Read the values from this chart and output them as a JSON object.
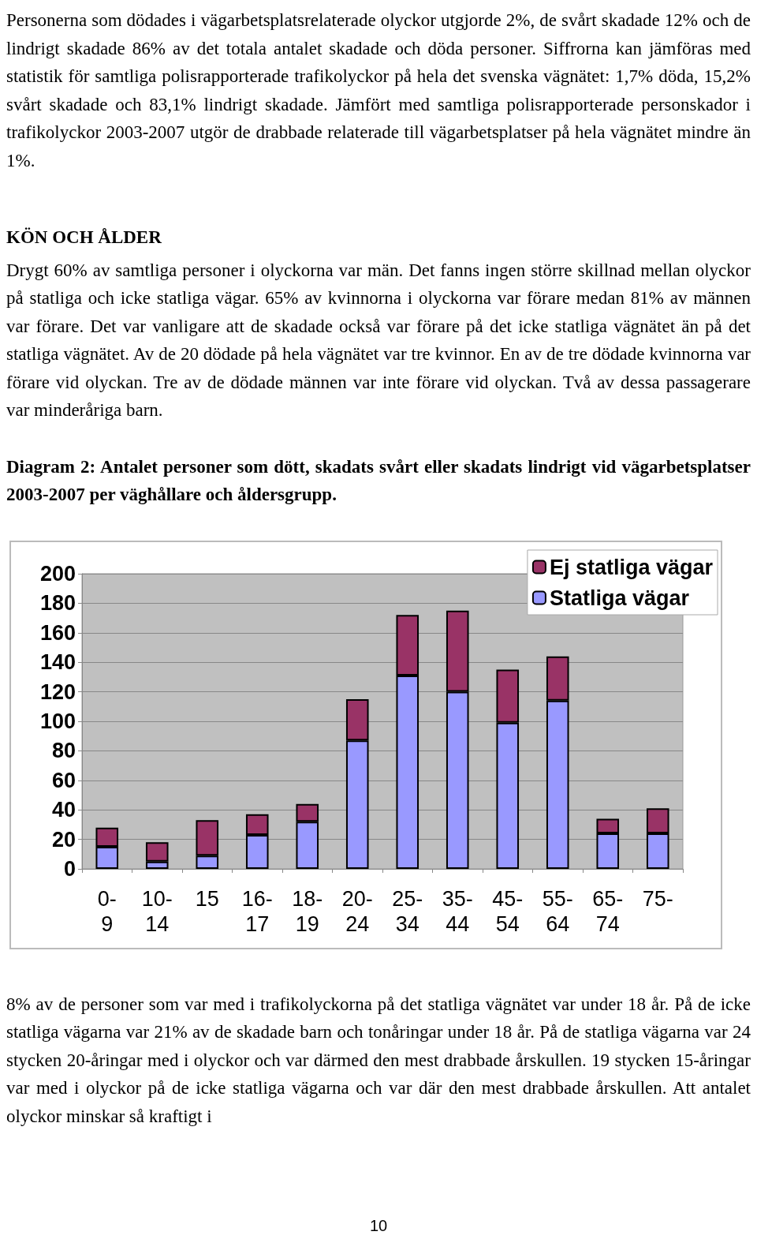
{
  "chart_data": {
    "type": "bar",
    "title": "Diagram 2: Antalet personer som dött, skadats svårt eller skadats lindrigt vid vägarbetsplatser 2003-2007 per väghållare och åldersgrupp.",
    "annotations": [
      "Personerna som dödades i vägarbetsplatsrelaterade olyckor utgjorde 2%, de svårt skadade 12% och de lindrigt skadade 86% av det totala antalet skadade och döda personer. Siffrorna kan jämföras med statistik för samtliga polisrapporterade trafikolyckor på hela det svenska vägnätet: 1,7% döda, 15,2% svårt skadade och 83,1% lindrigt skadade. Jämfört med samtliga polisrapporterade personskador i trafikolyckor 2003-2007 utgör de drabbade relaterade till vägarbetsplatser på hela vägnätet mindre än 1%.",
      "KÖN OCH ÅLDER",
      "Drygt 60% av samtliga personer i olyckorna var män. Det fanns ingen större skillnad mellan olyckor på statliga och icke statliga vägar. 65% av kvinnorna i olyckorna var förare medan 81% av männen var förare. Det var vanligare att de skadade också var förare på det icke statliga vägnätet än på det statliga vägnätet. Av de 20 dödade på hela vägnätet var tre kvinnor. En av de tre dödade kvinnorna var förare vid olyckan. Tre av de dödade männen var inte förare vid olyckan. Två av dessa passagerare var minderåriga barn.",
      "8% av de personer som var med i trafikolyckorna på det statliga vägnätet var under 18 år. På de icke statliga vägarna var 21% av de skadade barn och tonåringar under 18 år. På de statliga vägarna var 24 stycken 20-åringar med i olyckor och var därmed den mest drabbade årskullen. 19 stycken 15-åringar var med i olyckor på de icke statliga vägarna och var där den mest drabbade årskullen. Att antalet olyckor minskar så kraftigt i",
      "10"
    ],
    "categories": [
      "0-9",
      "10-14",
      "15",
      "16-17",
      "18-19",
      "20-24",
      "25-34",
      "35-44",
      "45-54",
      "55-64",
      "65-74",
      "75-"
    ],
    "stacked": true,
    "series": [
      {
        "name": "Statliga vägar",
        "color": "#9999ff",
        "values": [
          15,
          5,
          9,
          23,
          32,
          87,
          131,
          120,
          99,
          114,
          24,
          24
        ]
      },
      {
        "name": "Ej statliga vägar",
        "color": "#993366",
        "values": [
          13,
          13,
          24,
          14,
          12,
          28,
          41,
          55,
          36,
          30,
          10,
          17
        ]
      }
    ],
    "ylim": [
      0,
      200
    ],
    "yticks": [
      0,
      20,
      40,
      60,
      80,
      100,
      120,
      140,
      160,
      180,
      200
    ],
    "grid": "y",
    "legend": "top right"
  }
}
